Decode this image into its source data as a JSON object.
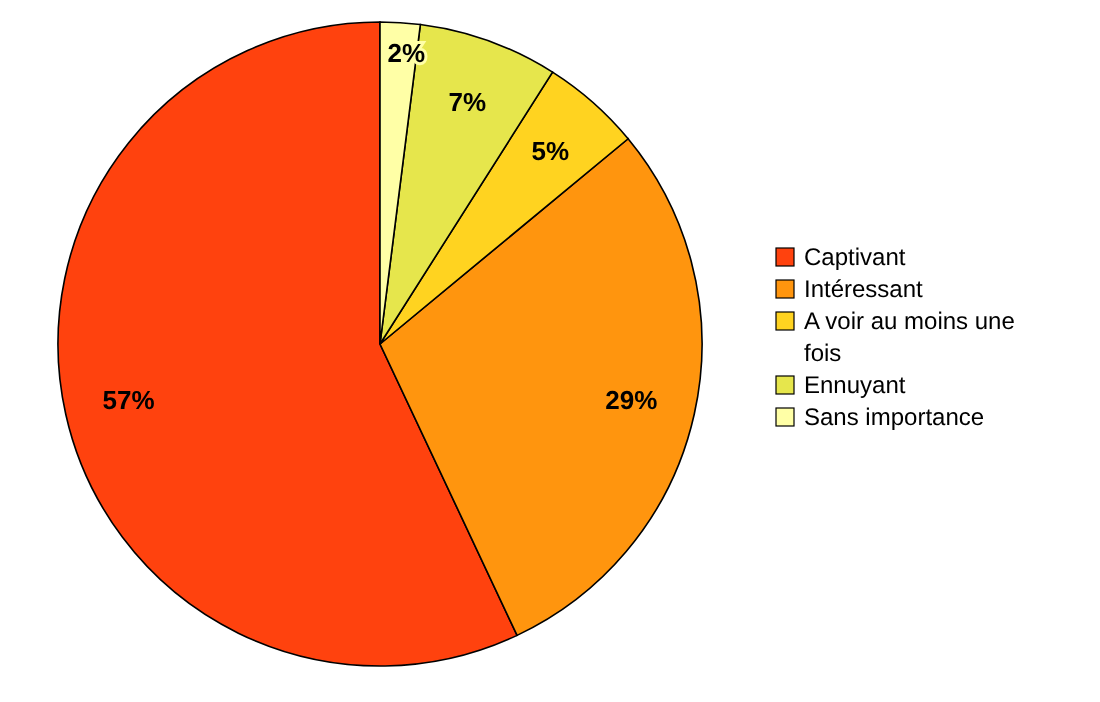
{
  "chart_data": {
    "type": "pie",
    "categories": [
      "Captivant",
      "Intéressant",
      "A voir au moins une fois",
      "Ennuyant",
      "Sans importance"
    ],
    "values": [
      57,
      29,
      5,
      7,
      2
    ],
    "colors": [
      "#ff420e",
      "#ff950e",
      "#ffd320",
      "#e6e64c",
      "#ffffa6"
    ],
    "value_labels": [
      "57%",
      "29%",
      "5%",
      "7%",
      "2%"
    ],
    "legend": "right"
  }
}
